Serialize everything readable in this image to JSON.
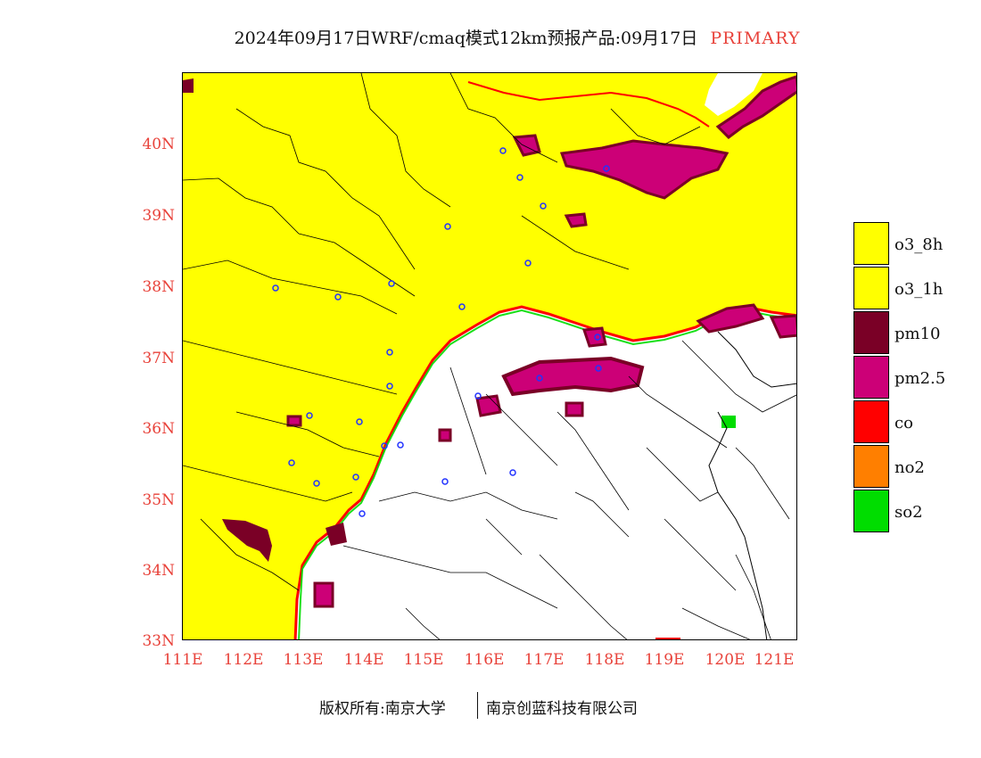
{
  "title": {
    "main": "2024年09月17日WRF/cmaq模式12km预报产品:09月17日",
    "highlight": "PRIMARY"
  },
  "axes": {
    "y_labels": [
      "40N",
      "39N",
      "38N",
      "37N",
      "36N",
      "35N",
      "34N",
      "33N"
    ],
    "x_labels": [
      "111E",
      "112E",
      "113E",
      "114E",
      "115E",
      "116E",
      "117E",
      "118E",
      "119E",
      "120E",
      "121E"
    ]
  },
  "legend": [
    {
      "label": "o3_8h",
      "color": "#ffff00"
    },
    {
      "label": "o3_1h",
      "color": "#ffff00"
    },
    {
      "label": "pm10",
      "color": "#7a0026"
    },
    {
      "label": "pm2.5",
      "color": "#cc0077"
    },
    {
      "label": "co",
      "color": "#ff0000"
    },
    {
      "label": "no2",
      "color": "#ff7f00"
    },
    {
      "label": "so2",
      "color": "#00dd00"
    }
  ],
  "footer": {
    "left": "版权所有:南京大学",
    "right": "南京创蓝科技有限公司"
  },
  "colors": {
    "accent": "#e8423a",
    "ozone": "#ffff00",
    "pm10": "#7a0026",
    "pm25": "#cc0077",
    "co": "#ff0000",
    "so2": "#00dd00",
    "border": "#000000",
    "city_marker": "#2233ff"
  }
}
